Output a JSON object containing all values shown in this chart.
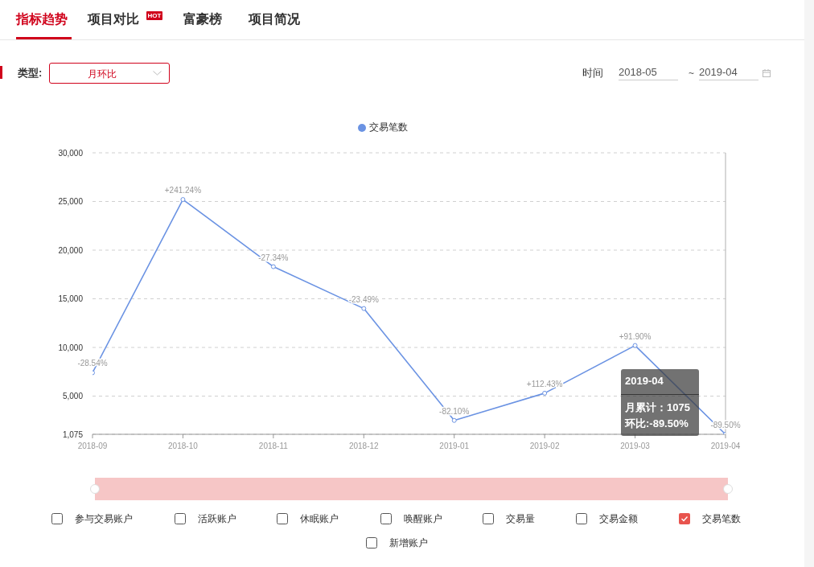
{
  "chart_data": {
    "type": "line",
    "categories": [
      "2018-09",
      "2018-10",
      "2018-11",
      "2018-12",
      "2019-01",
      "2019-02",
      "2019-03",
      "2019-04"
    ],
    "series": [
      {
        "name": "交易笔数",
        "color": "#6b93e3",
        "values": [
          7400,
          25200,
          18300,
          14000,
          2500,
          5300,
          10200,
          1075
        ]
      }
    ],
    "ylim": [
      1075,
      30000
    ],
    "yticks": [
      {
        "value": 1075,
        "label": "1,075"
      },
      {
        "value": 5000,
        "label": "5,000"
      },
      {
        "value": 10000,
        "label": "10,000"
      },
      {
        "value": 15000,
        "label": "15,000"
      },
      {
        "value": 20000,
        "label": "20,000"
      },
      {
        "value": 25000,
        "label": "25,000"
      },
      {
        "value": 30000,
        "label": "30,000"
      }
    ],
    "grid": "y",
    "legend": "top",
    "marker": "circle",
    "ref_lines": [
      {
        "axis": "x",
        "value": "2019-04",
        "color": "#b0b0b0"
      }
    ],
    "annotations": [
      "指标趋势",
      "项目对比",
      "HOT",
      "富豪榜",
      "项目简况",
      "类型:",
      "月环比",
      "时间",
      "2018-05",
      "~",
      "2019-04",
      "2019-04",
      "月累计：1075",
      "环比:-89.50%",
      "参与交易账户",
      "活跃账户",
      "休眠账户",
      "唤醒账户",
      "交易量",
      "交易金额",
      "交易笔数",
      "新增账户",
      {
        "text": "-28.54%",
        "x": "2018-09",
        "y": 7400
      },
      {
        "text": "+241.24%",
        "x": "2018-10",
        "y": 25200
      },
      {
        "text": "-27.34%",
        "x": "2018-11",
        "y": 18300
      },
      {
        "text": "-23.49%",
        "x": "2018-12",
        "y": 14000
      },
      {
        "text": "-82.10%",
        "x": "2019-01",
        "y": 2500
      },
      {
        "text": "+112.43%",
        "x": "2019-02",
        "y": 5300
      },
      {
        "text": "+91.90%",
        "x": "2019-03",
        "y": 10200
      },
      {
        "text": "-89.50%",
        "x": "2019-04",
        "y": 1075
      }
    ]
  }
}
